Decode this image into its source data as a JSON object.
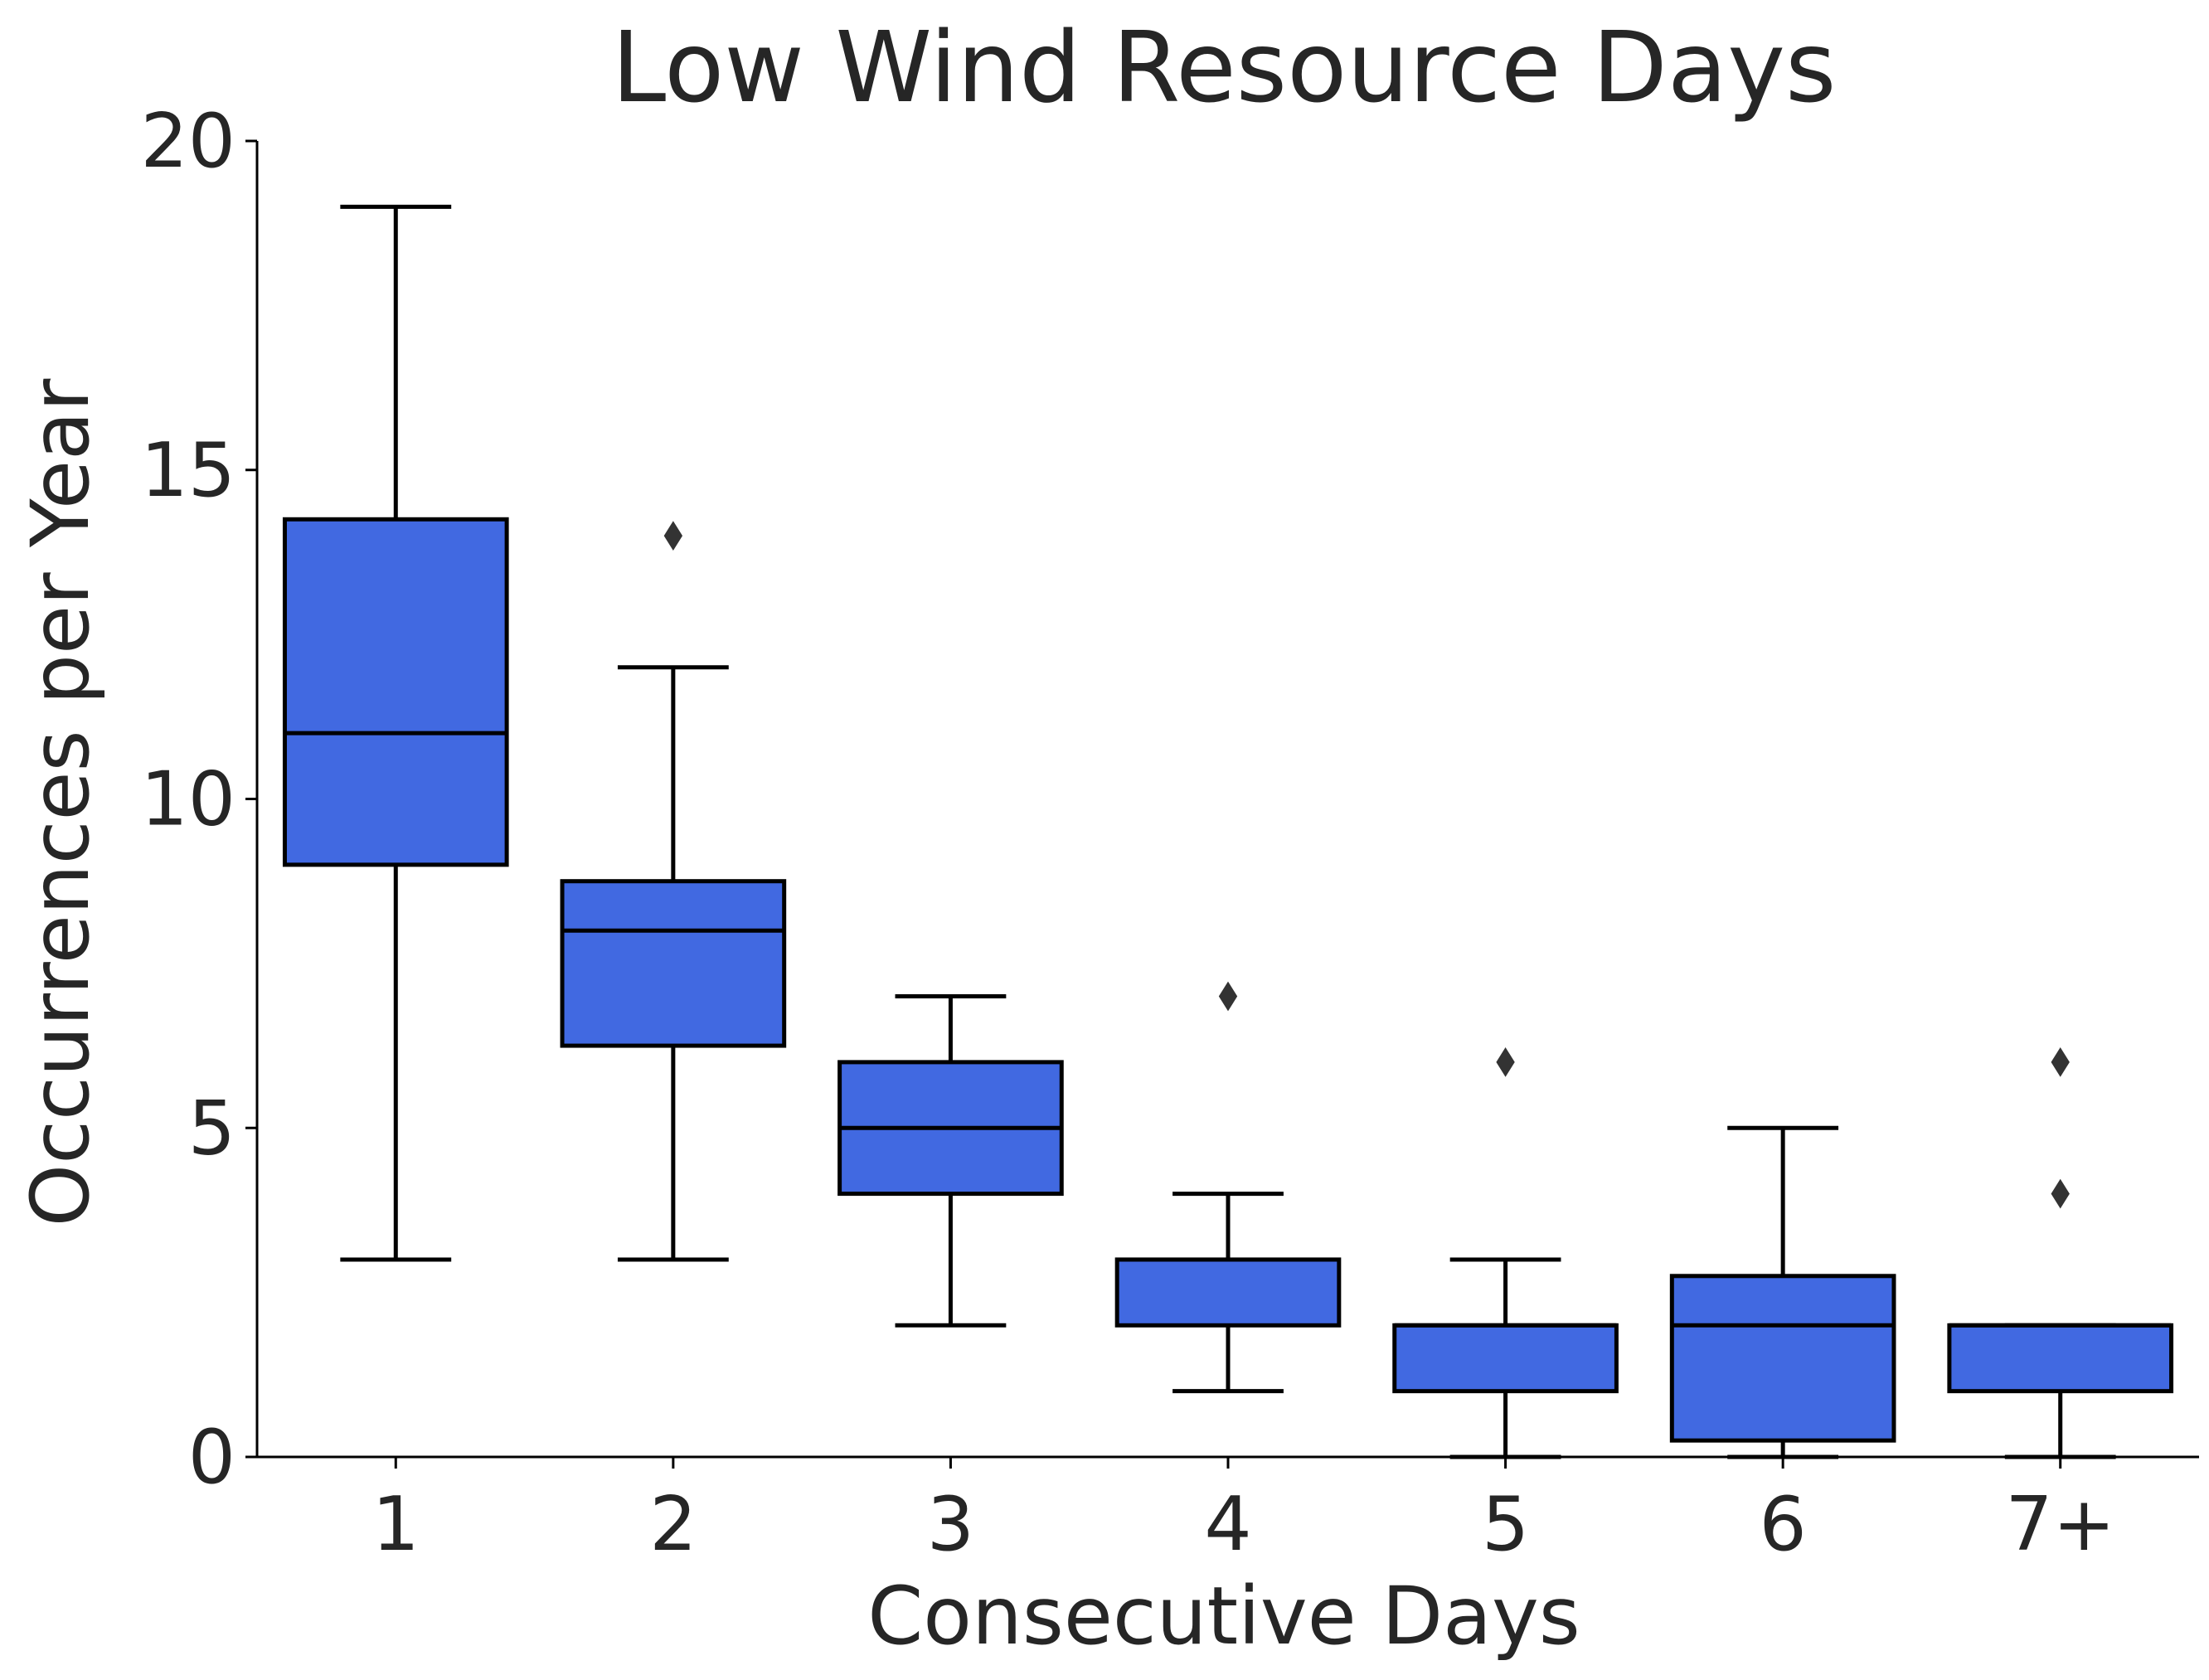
{
  "chart_data": {
    "type": "box",
    "title": "Low Wind Resource Days",
    "xlabel": "Consecutive Days",
    "ylabel": "Occurrences per Year",
    "ylim": [
      0,
      20
    ],
    "yticks": [
      0,
      5,
      10,
      15,
      20
    ],
    "categories": [
      "1",
      "2",
      "3",
      "4",
      "5",
      "6",
      "7+"
    ],
    "boxes": [
      {
        "category": "1",
        "whisker_low": 3,
        "q1": 9,
        "median": 11,
        "q3": 14.25,
        "whisker_high": 19,
        "outliers": []
      },
      {
        "category": "2",
        "whisker_low": 3,
        "q1": 6.25,
        "median": 8,
        "q3": 8.75,
        "whisker_high": 12,
        "outliers": [
          14
        ]
      },
      {
        "category": "3",
        "whisker_low": 2,
        "q1": 4,
        "median": 5,
        "q3": 6,
        "whisker_high": 7,
        "outliers": []
      },
      {
        "category": "4",
        "whisker_low": 1,
        "q1": 2,
        "median": 3,
        "q3": 3,
        "whisker_high": 4,
        "outliers": [
          7
        ]
      },
      {
        "category": "5",
        "whisker_low": 0,
        "q1": 1,
        "median": 2,
        "q3": 2,
        "whisker_high": 3,
        "outliers": [
          6
        ]
      },
      {
        "category": "6",
        "whisker_low": 0,
        "q1": 0.25,
        "median": 2,
        "q3": 2.75,
        "whisker_high": 5,
        "outliers": []
      },
      {
        "category": "7+",
        "whisker_low": 0,
        "q1": 1,
        "median": 2,
        "q3": 2,
        "whisker_high": 2,
        "outliers": [
          4,
          6
        ]
      }
    ],
    "grid": false,
    "box_color": "#4169e1",
    "edge_color": "#000000",
    "text_color": "#262626"
  }
}
